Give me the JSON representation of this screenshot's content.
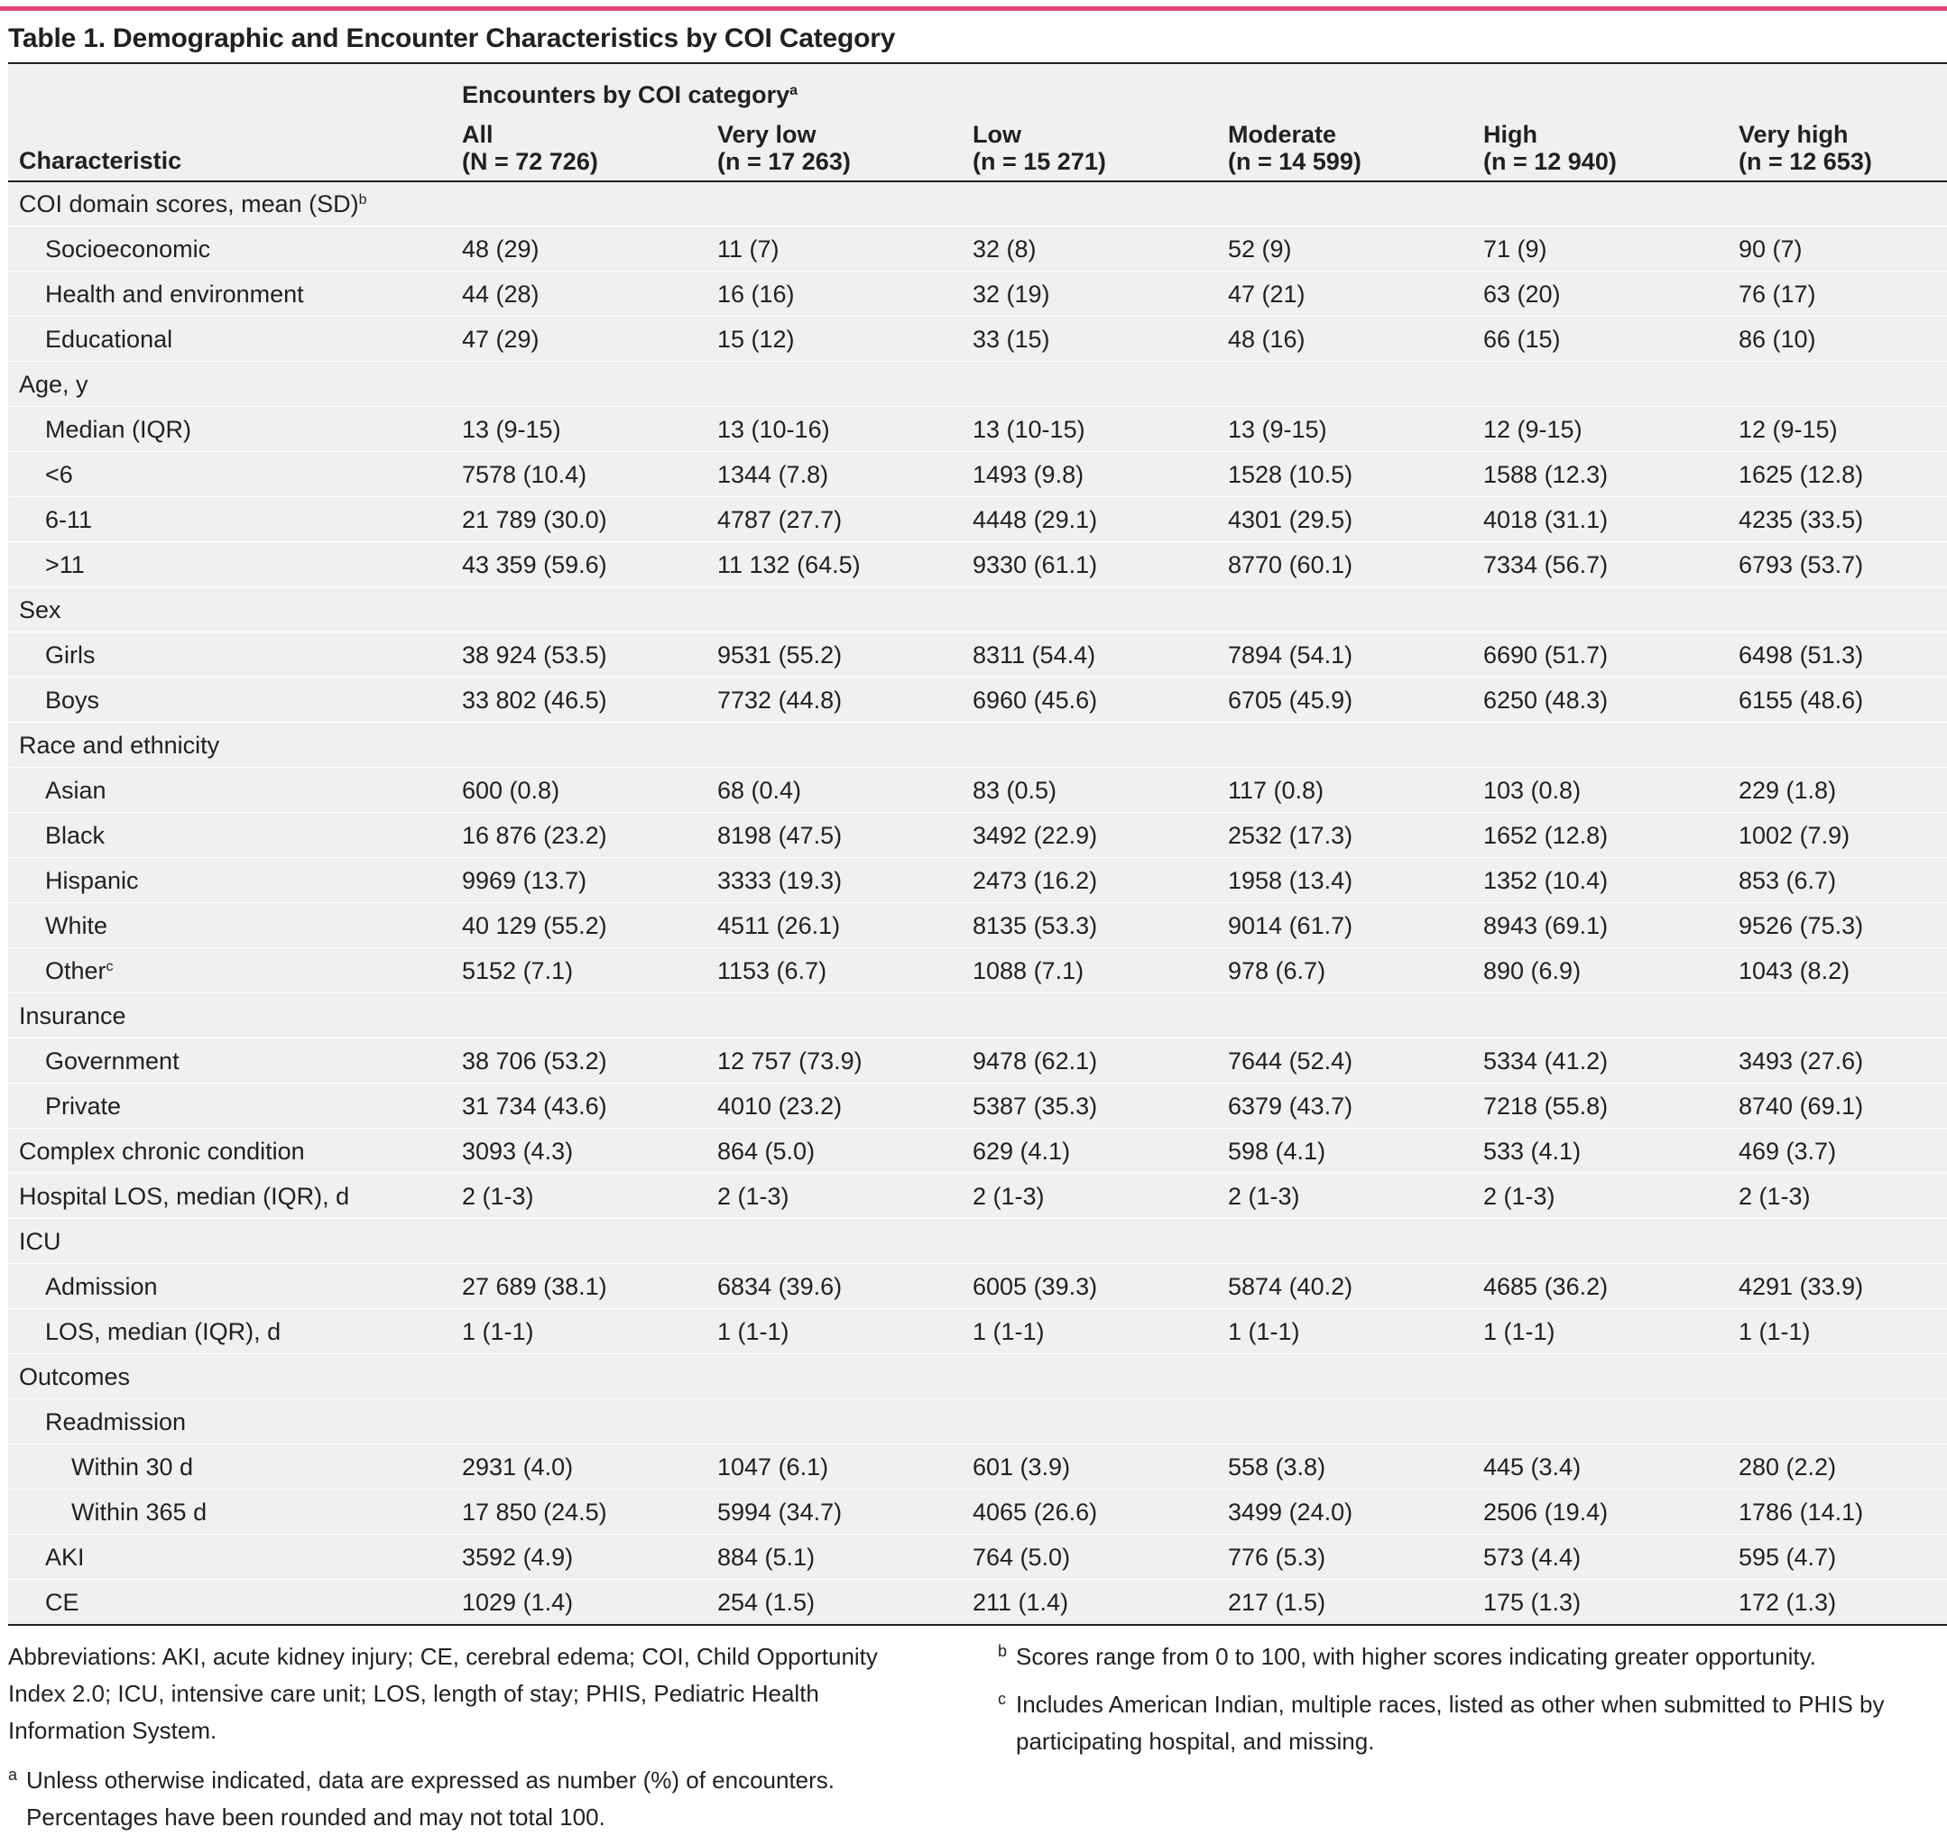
{
  "title": "Table 1. Demographic and Encounter Characteristics by COI Category",
  "header": {
    "characteristic": "Characteristic",
    "group_label": "Encounters by COI category",
    "group_sup": "a",
    "columns": [
      {
        "name": "All",
        "n": "(N = 72 726)"
      },
      {
        "name": "Very low",
        "n": "(n = 17 263)"
      },
      {
        "name": "Low",
        "n": "(n = 15 271)"
      },
      {
        "name": "Moderate",
        "n": "(n = 14 599)"
      },
      {
        "name": "High",
        "n": "(n = 12 940)"
      },
      {
        "name": "Very high",
        "n": "(n = 12 653)"
      }
    ]
  },
  "rows": [
    {
      "label": "COI domain scores, mean (SD)",
      "sup": "b",
      "indent": 0,
      "values": []
    },
    {
      "label": "Socioeconomic",
      "indent": 1,
      "values": [
        "48 (29)",
        "11 (7)",
        "32 (8)",
        "52 (9)",
        "71 (9)",
        "90 (7)"
      ]
    },
    {
      "label": "Health and environment",
      "indent": 1,
      "values": [
        "44 (28)",
        "16 (16)",
        "32 (19)",
        "47 (21)",
        "63 (20)",
        "76 (17)"
      ]
    },
    {
      "label": "Educational",
      "indent": 1,
      "values": [
        "47 (29)",
        "15 (12)",
        "33 (15)",
        "48 (16)",
        "66 (15)",
        "86 (10)"
      ]
    },
    {
      "label": "Age, y",
      "indent": 0,
      "values": []
    },
    {
      "label": "Median (IQR)",
      "indent": 1,
      "values": [
        "13 (9-15)",
        "13 (10-16)",
        "13 (10-15)",
        "13 (9-15)",
        "12 (9-15)",
        "12 (9-15)"
      ]
    },
    {
      "label": "<6",
      "indent": 1,
      "values": [
        "7578 (10.4)",
        "1344 (7.8)",
        "1493 (9.8)",
        "1528 (10.5)",
        "1588 (12.3)",
        "1625 (12.8)"
      ]
    },
    {
      "label": "6-11",
      "indent": 1,
      "values": [
        "21 789 (30.0)",
        "4787 (27.7)",
        "4448 (29.1)",
        "4301 (29.5)",
        "4018 (31.1)",
        "4235 (33.5)"
      ]
    },
    {
      "label": ">11",
      "indent": 1,
      "values": [
        "43 359 (59.6)",
        "11 132 (64.5)",
        "9330 (61.1)",
        "8770 (60.1)",
        "7334 (56.7)",
        "6793 (53.7)"
      ]
    },
    {
      "label": "Sex",
      "indent": 0,
      "values": []
    },
    {
      "label": "Girls",
      "indent": 1,
      "values": [
        "38 924 (53.5)",
        "9531 (55.2)",
        "8311 (54.4)",
        "7894 (54.1)",
        "6690 (51.7)",
        "6498 (51.3)"
      ]
    },
    {
      "label": "Boys",
      "indent": 1,
      "values": [
        "33 802 (46.5)",
        "7732 (44.8)",
        "6960 (45.6)",
        "6705 (45.9)",
        "6250 (48.3)",
        "6155 (48.6)"
      ]
    },
    {
      "label": "Race and ethnicity",
      "indent": 0,
      "values": []
    },
    {
      "label": "Asian",
      "indent": 1,
      "values": [
        "600 (0.8)",
        "68 (0.4)",
        "83 (0.5)",
        "117 (0.8)",
        "103 (0.8)",
        "229 (1.8)"
      ]
    },
    {
      "label": "Black",
      "indent": 1,
      "values": [
        "16 876 (23.2)",
        "8198 (47.5)",
        "3492 (22.9)",
        "2532 (17.3)",
        "1652 (12.8)",
        "1002 (7.9)"
      ]
    },
    {
      "label": "Hispanic",
      "indent": 1,
      "values": [
        "9969 (13.7)",
        "3333 (19.3)",
        "2473 (16.2)",
        "1958 (13.4)",
        "1352 (10.4)",
        "853 (6.7)"
      ]
    },
    {
      "label": "White",
      "indent": 1,
      "values": [
        "40 129 (55.2)",
        "4511 (26.1)",
        "8135 (53.3)",
        "9014 (61.7)",
        "8943 (69.1)",
        "9526 (75.3)"
      ]
    },
    {
      "label": "Other",
      "sup": "c",
      "indent": 1,
      "values": [
        "5152 (7.1)",
        "1153 (6.7)",
        "1088 (7.1)",
        "978 (6.7)",
        "890 (6.9)",
        "1043 (8.2)"
      ]
    },
    {
      "label": "Insurance",
      "indent": 0,
      "values": []
    },
    {
      "label": "Government",
      "indent": 1,
      "values": [
        "38 706 (53.2)",
        "12 757 (73.9)",
        "9478 (62.1)",
        "7644 (52.4)",
        "5334 (41.2)",
        "3493 (27.6)"
      ]
    },
    {
      "label": "Private",
      "indent": 1,
      "values": [
        "31 734 (43.6)",
        "4010 (23.2)",
        "5387 (35.3)",
        "6379 (43.7)",
        "7218 (55.8)",
        "8740 (69.1)"
      ]
    },
    {
      "label": "Complex chronic condition",
      "indent": 0,
      "values": [
        "3093 (4.3)",
        "864 (5.0)",
        "629 (4.1)",
        "598 (4.1)",
        "533 (4.1)",
        "469 (3.7)"
      ]
    },
    {
      "label": "Hospital LOS, median (IQR), d",
      "indent": 0,
      "values": [
        "2 (1-3)",
        "2 (1-3)",
        "2 (1-3)",
        "2 (1-3)",
        "2 (1-3)",
        "2 (1-3)"
      ]
    },
    {
      "label": "ICU",
      "indent": 0,
      "values": []
    },
    {
      "label": "Admission",
      "indent": 1,
      "values": [
        "27 689 (38.1)",
        "6834 (39.6)",
        "6005 (39.3)",
        "5874 (40.2)",
        "4685 (36.2)",
        "4291 (33.9)"
      ]
    },
    {
      "label": "LOS, median (IQR), d",
      "indent": 1,
      "values": [
        "1 (1-1)",
        "1 (1-1)",
        "1 (1-1)",
        "1 (1-1)",
        "1 (1-1)",
        "1 (1-1)"
      ]
    },
    {
      "label": "Outcomes",
      "indent": 0,
      "values": []
    },
    {
      "label": "Readmission",
      "indent": 1,
      "values": []
    },
    {
      "label": "Within 30 d",
      "indent": 2,
      "values": [
        "2931 (4.0)",
        "1047 (6.1)",
        "601 (3.9)",
        "558 (3.8)",
        "445 (3.4)",
        "280 (2.2)"
      ]
    },
    {
      "label": "Within 365 d",
      "indent": 2,
      "values": [
        "17 850 (24.5)",
        "5994 (34.7)",
        "4065 (26.6)",
        "3499 (24.0)",
        "2506 (19.4)",
        "1786 (14.1)"
      ]
    },
    {
      "label": "AKI",
      "indent": 1,
      "values": [
        "3592 (4.9)",
        "884 (5.1)",
        "764 (5.0)",
        "776 (5.3)",
        "573 (4.4)",
        "595 (4.7)"
      ]
    },
    {
      "label": "CE",
      "indent": 1,
      "values": [
        "1029 (1.4)",
        "254 (1.5)",
        "211 (1.4)",
        "217 (1.5)",
        "175 (1.3)",
        "172 (1.3)"
      ]
    }
  ],
  "footnotes": {
    "abbreviations": "Abbreviations: AKI, acute kidney injury; CE, cerebral edema; COI, Child Opportunity Index 2.0; ICU, intensive care unit; LOS, length of stay; PHIS, Pediatric Health Information System.",
    "a": {
      "mark": "a",
      "text": "Unless otherwise indicated, data are expressed as number (%) of encounters. Percentages have been rounded and may not total 100."
    },
    "b": {
      "mark": "b",
      "text": "Scores range from 0 to 100, with higher scores indicating greater opportunity."
    },
    "c": {
      "mark": "c",
      "text": "Includes American Indian, multiple races, listed as other when submitted to PHIS by participating hospital, and missing."
    }
  },
  "colors": {
    "accent_bar": "#e0457b",
    "row_band": "#eef0f1",
    "text": "#231f20"
  }
}
